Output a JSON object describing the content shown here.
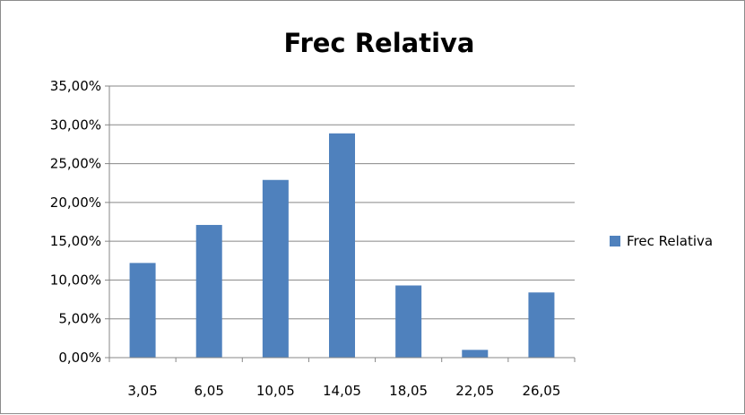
{
  "chart_data": {
    "type": "bar",
    "title": "Frec Relativa",
    "categories": [
      "3,05",
      "6,05",
      "10,05",
      "14,05",
      "18,05",
      "22,05",
      "26,05"
    ],
    "series": [
      {
        "name": "Frec Relativa",
        "values": [
          0.122,
          0.171,
          0.229,
          0.289,
          0.093,
          0.01,
          0.084
        ],
        "color": "#4f81bd"
      }
    ],
    "ylim": [
      0,
      0.35
    ],
    "yticks": [
      0,
      0.05,
      0.1,
      0.15,
      0.2,
      0.25,
      0.3,
      0.35
    ],
    "ytick_labels": [
      "0,00%",
      "5,00%",
      "10,00%",
      "15,00%",
      "20,00%",
      "25,00%",
      "30,00%",
      "35,00%"
    ],
    "grid": true,
    "legend": "right",
    "xlabel": "",
    "ylabel": ""
  }
}
